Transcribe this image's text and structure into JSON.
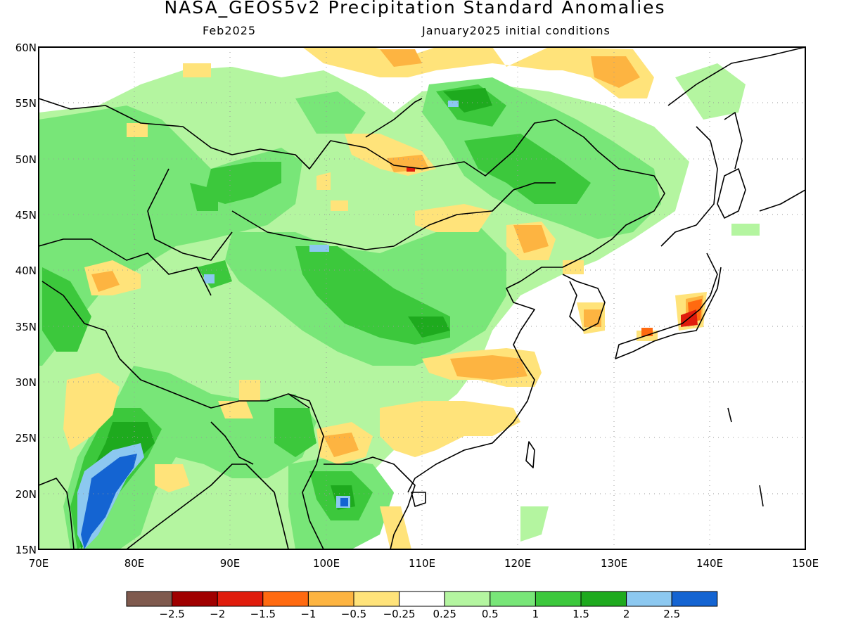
{
  "header": {
    "title": "NASA_GEOS5v2 Precipitation Standard Anomalies",
    "subtitle_left": "Feb2025",
    "subtitle_right": "January2025 initial conditions"
  },
  "axes": {
    "lat_labels": [
      "60N",
      "55N",
      "50N",
      "45N",
      "40N",
      "35N",
      "30N",
      "25N",
      "20N",
      "15N"
    ],
    "lon_labels": [
      "70E",
      "80E",
      "90E",
      "100E",
      "110E",
      "120E",
      "130E",
      "140E",
      "150E"
    ]
  },
  "legend": {
    "colors": [
      "#7f5a4e",
      "#a00000",
      "#e01c0c",
      "#ff6a10",
      "#fdb441",
      "#ffe37a",
      "#ffffff",
      "#b4f5a0",
      "#78e678",
      "#3cc83c",
      "#1eaa1e",
      "#8cc8f0",
      "#1464d2"
    ],
    "labels": [
      "−2.5",
      "−2",
      "−1.5",
      "−1",
      "−0.5",
      "−0.25",
      "0.25",
      "0.5",
      "1",
      "1.5",
      "2",
      "2.5"
    ]
  },
  "palette": {
    "green_light": "#b4f5a0",
    "green": "#78e678",
    "green_mid": "#3cc83c",
    "green_dark": "#1eaa1e",
    "blue_light": "#8cc8f0",
    "blue": "#1464d2",
    "yellow": "#ffe37a",
    "orange": "#fdb441",
    "orange_dark": "#ff6a10",
    "red": "#e01c0c"
  }
}
